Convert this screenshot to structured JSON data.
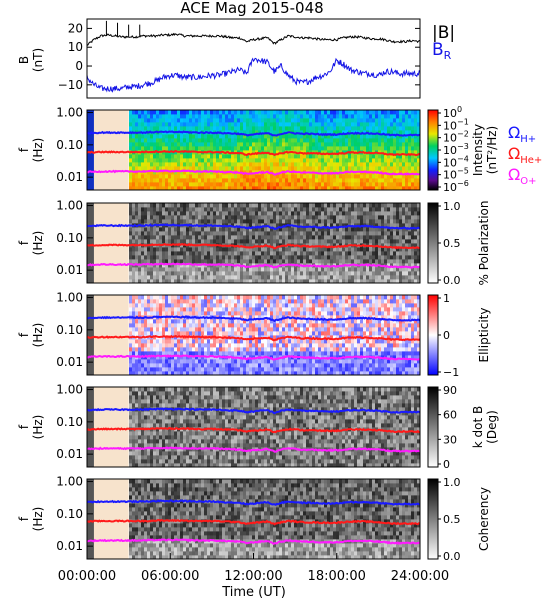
{
  "title": "ACE Mag 2015-048",
  "time_axis": {
    "label": "Time (UT)",
    "ticks": [
      "00:00:00",
      "06:00:00",
      "12:00:00",
      "18:00:00",
      "24:00:00"
    ],
    "range_hours": [
      0,
      24
    ]
  },
  "shaded_interval_hours": [
    0.5,
    3.0
  ],
  "colors": {
    "total_field": "#000000",
    "radial_field": "#1414e6",
    "h_gyro": "#1a1aff",
    "he_gyro": "#ff1a1a",
    "o_gyro": "#ff1aff",
    "shade": "#f7e3cc"
  },
  "chart_data": [
    {
      "type": "line",
      "panel": "magnetic-field",
      "ylabel_line1": "B",
      "ylabel_line2": "(nT)",
      "ylim": [
        -17,
        25
      ],
      "yticks": [
        "20",
        "10",
        "0",
        "−10"
      ],
      "ytick_values": [
        20,
        10,
        0,
        -10
      ],
      "legend": {
        "total": "|B|",
        "radial_main": "B",
        "radial_sub": "R"
      },
      "series": [
        {
          "name": "|B|",
          "x": [
            0,
            0.5,
            1,
            1.5,
            2,
            2.5,
            3,
            3.5,
            4,
            4.5,
            5,
            5.5,
            6,
            6.5,
            7,
            7.5,
            8,
            8.5,
            9,
            9.5,
            10,
            10.5,
            11,
            11.5,
            12,
            12.5,
            13,
            13.5,
            14,
            14.5,
            15,
            15.5,
            16,
            16.5,
            17,
            17.5,
            18,
            18.5,
            19,
            19.5,
            20,
            20.5,
            21,
            21.5,
            22,
            22.5,
            23,
            23.5,
            24
          ],
          "values": [
            11,
            14,
            16,
            16.5,
            16,
            15.5,
            15.5,
            15.5,
            16,
            16,
            16,
            16.5,
            16.5,
            17,
            16,
            16,
            16,
            16,
            16,
            16,
            15.5,
            15,
            15,
            13,
            14,
            14.5,
            15,
            12,
            14,
            16,
            15.5,
            15,
            15,
            14.5,
            14,
            14,
            14,
            15,
            15.5,
            15.5,
            15,
            14.5,
            14.5,
            14,
            13,
            13,
            13,
            13.5,
            13
          ]
        },
        {
          "name": "B_R",
          "x": [
            0,
            0.5,
            1,
            1.5,
            2,
            2.5,
            3,
            3.5,
            4,
            4.5,
            5,
            5.5,
            6,
            6.5,
            7,
            7.5,
            8,
            8.5,
            9,
            9.5,
            10,
            10.5,
            11,
            11.5,
            12,
            12.5,
            13,
            13.5,
            14,
            14.5,
            15,
            15.5,
            16,
            16.5,
            17,
            17.5,
            18,
            18.5,
            19,
            19.5,
            20,
            20.5,
            21,
            21.5,
            22,
            22.5,
            23,
            23.5,
            24
          ],
          "values": [
            -6,
            -10,
            -12,
            -12,
            -12,
            -12,
            -11,
            -11,
            -10,
            -9,
            -8,
            -6,
            -5,
            -5,
            -6,
            -6,
            -6,
            -5.5,
            -5,
            -5,
            -4,
            -3,
            -2,
            -4,
            4,
            3,
            2,
            -3,
            0,
            -5,
            -8,
            -9,
            -8,
            -6,
            -5,
            -3,
            3,
            1,
            -2,
            -3,
            -4,
            -4,
            -5,
            -3,
            -3,
            -4,
            -4,
            -4,
            -4
          ]
        }
      ]
    },
    {
      "type": "heatmap",
      "panel": "intensity",
      "ylabel_line1": "f",
      "ylabel_line2": "(Hz)",
      "yscale": "log",
      "ylim": [
        0.004,
        1.2
      ],
      "yticks": [
        "1.00",
        "0.10",
        "0.01"
      ],
      "ytick_values": [
        1,
        0.1,
        0.01
      ],
      "colorbar": {
        "label_line1": "Intensity",
        "label_line2": "(nT²/Hz)",
        "ticks": [
          {
            "base": "10",
            "exp": "0"
          },
          {
            "base": "10",
            "exp": "−1"
          },
          {
            "base": "10",
            "exp": "−2"
          },
          {
            "base": "10",
            "exp": "−3"
          },
          {
            "base": "10",
            "exp": "−4"
          },
          {
            "base": "10",
            "exp": "−5"
          },
          {
            "base": "10",
            "exp": "−6"
          }
        ]
      },
      "legend": [
        {
          "main": "Ω",
          "sub": "H+"
        },
        {
          "main": "Ω",
          "sub": "He+"
        },
        {
          "main": "Ω",
          "sub": "O+"
        }
      ]
    },
    {
      "type": "heatmap",
      "panel": "polarization",
      "ylabel_line1": "f",
      "ylabel_line2": "(Hz)",
      "yscale": "log",
      "ylim": [
        0.004,
        1.2
      ],
      "yticks": [
        "1.00",
        "0.10",
        "0.01"
      ],
      "ytick_values": [
        1,
        0.1,
        0.01
      ],
      "colorbar": {
        "label": "% Polarization",
        "ticks": [
          "1.0",
          "0.5",
          "0.0"
        ],
        "tick_values": [
          1,
          0.5,
          0
        ]
      }
    },
    {
      "type": "heatmap",
      "panel": "ellipticity",
      "ylabel_line1": "f",
      "ylabel_line2": "(Hz)",
      "yscale": "log",
      "ylim": [
        0.004,
        1.2
      ],
      "yticks": [
        "1.00",
        "0.10",
        "0.01"
      ],
      "ytick_values": [
        1,
        0.1,
        0.01
      ],
      "colorbar": {
        "label": "Ellipticity",
        "ticks": [
          "1",
          "0",
          "−1"
        ],
        "tick_values": [
          1,
          0,
          -1
        ]
      }
    },
    {
      "type": "heatmap",
      "panel": "k-dot-b",
      "ylabel_line1": "f",
      "ylabel_line2": "(Hz)",
      "yscale": "log",
      "ylim": [
        0.004,
        1.2
      ],
      "yticks": [
        "1.00",
        "0.10",
        "0.01"
      ],
      "ytick_values": [
        1,
        0.1,
        0.01
      ],
      "colorbar": {
        "label_line1": "k dot B",
        "label_line2": "(Deg)",
        "ticks": [
          "90",
          "60",
          "30",
          "0"
        ],
        "tick_values": [
          90,
          60,
          30,
          0
        ]
      }
    },
    {
      "type": "heatmap",
      "panel": "coherency",
      "ylabel_line1": "f",
      "ylabel_line2": "(Hz)",
      "yscale": "log",
      "ylim": [
        0.004,
        1.2
      ],
      "yticks": [
        "1.00",
        "0.10",
        "0.01"
      ],
      "ytick_values": [
        1,
        0.1,
        0.01
      ],
      "colorbar": {
        "label": "Coherency",
        "ticks": [
          "1.0",
          "0.5",
          "0.0"
        ],
        "tick_values": [
          1,
          0.5,
          0
        ]
      }
    }
  ],
  "gyrofrequency_overlay": {
    "x": [
      0,
      1,
      2,
      3,
      4,
      5,
      6,
      7,
      8,
      9,
      10,
      11,
      11.5,
      12,
      12.5,
      13,
      13.5,
      14,
      14.5,
      15,
      15.5,
      16,
      17,
      18,
      19,
      20,
      21,
      22,
      23,
      24
    ],
    "h_plus_hz": [
      0.23,
      0.24,
      0.24,
      0.24,
      0.24,
      0.25,
      0.25,
      0.25,
      0.24,
      0.24,
      0.23,
      0.22,
      0.2,
      0.21,
      0.22,
      0.23,
      0.19,
      0.22,
      0.24,
      0.23,
      0.22,
      0.22,
      0.21,
      0.21,
      0.23,
      0.23,
      0.22,
      0.2,
      0.2,
      0.2
    ],
    "he_plus_hz": [
      0.058,
      0.06,
      0.06,
      0.06,
      0.06,
      0.062,
      0.062,
      0.062,
      0.06,
      0.06,
      0.058,
      0.055,
      0.05,
      0.053,
      0.055,
      0.058,
      0.048,
      0.055,
      0.06,
      0.058,
      0.055,
      0.055,
      0.053,
      0.053,
      0.058,
      0.058,
      0.055,
      0.05,
      0.05,
      0.05
    ],
    "o_plus_hz": [
      0.0145,
      0.015,
      0.015,
      0.015,
      0.015,
      0.0155,
      0.0155,
      0.0155,
      0.015,
      0.015,
      0.0145,
      0.0138,
      0.0125,
      0.0132,
      0.0138,
      0.0145,
      0.012,
      0.0138,
      0.015,
      0.0145,
      0.0138,
      0.0138,
      0.0132,
      0.0132,
      0.0145,
      0.0145,
      0.0138,
      0.0125,
      0.0125,
      0.0125
    ]
  }
}
